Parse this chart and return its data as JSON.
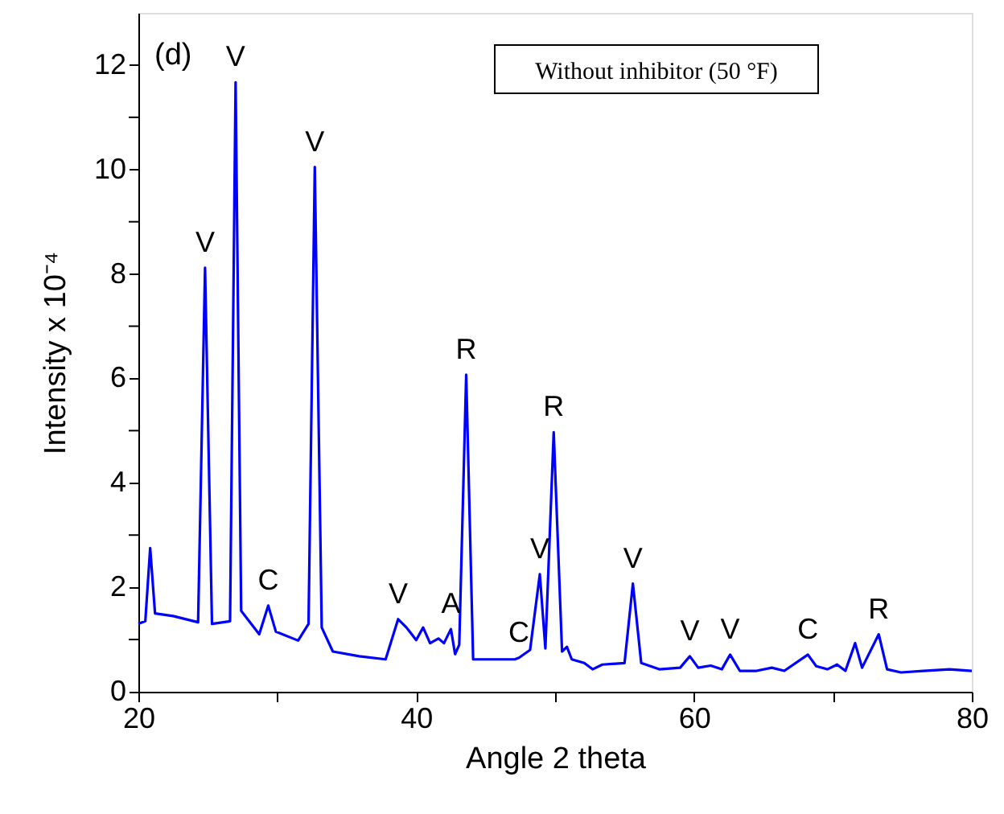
{
  "chart_data": {
    "type": "line",
    "xlabel": "Angle 2 theta",
    "ylabel": "Intensity x 10⁻⁴",
    "xlim": [
      20,
      80
    ],
    "ylim": [
      0,
      13
    ],
    "xticks": [
      20,
      {
        "value": 30,
        "label": null
      },
      40,
      {
        "value": 50,
        "label": null
      },
      60,
      {
        "value": 70,
        "label": null
      },
      80
    ],
    "yticks": [
      0,
      {
        "value": 1,
        "label": null
      },
      2,
      {
        "value": 3,
        "label": null
      },
      4,
      {
        "value": 5,
        "label": null
      },
      6,
      {
        "value": 7,
        "label": null
      },
      8,
      {
        "value": 9,
        "label": null
      },
      10,
      {
        "value": 11,
        "label": null
      },
      12
    ],
    "grid": false,
    "marker": "none",
    "line_style": "solid",
    "series": [
      {
        "color": "#0000ff",
        "x": [
          20,
          20.5,
          20.85,
          21.2,
          22.5,
          24.3,
          24.8,
          25.3,
          26.6,
          27.0,
          27.4,
          28.7,
          29.35,
          29.9,
          31.5,
          32.25,
          32.7,
          33.2,
          34.0,
          35.9,
          37.8,
          38.7,
          39.3,
          40.0,
          40.5,
          41.0,
          41.6,
          42.0,
          42.5,
          42.8,
          43.1,
          43.6,
          44.1,
          45.5,
          47.1,
          47.4,
          48.2,
          48.9,
          49.3,
          49.9,
          50.5,
          50.85,
          51.2,
          52.1,
          52.7,
          53.4,
          55.0,
          55.6,
          56.2,
          57.5,
          59.0,
          59.7,
          60.3,
          61.2,
          62.0,
          62.6,
          63.3,
          64.5,
          65.6,
          66.5,
          68.2,
          68.8,
          69.6,
          70.3,
          70.9,
          71.6,
          72.1,
          73.3,
          73.9,
          74.9,
          76.5,
          78.4,
          80
        ],
        "values": [
          1.3,
          1.35,
          2.75,
          1.5,
          1.45,
          1.33,
          8.12,
          1.3,
          1.35,
          11.67,
          1.55,
          1.1,
          1.65,
          1.15,
          0.98,
          1.3,
          10.05,
          1.23,
          0.77,
          0.68,
          0.62,
          1.39,
          1.23,
          0.99,
          1.23,
          0.93,
          1.02,
          0.93,
          1.2,
          0.72,
          0.9,
          6.07,
          0.62,
          0.62,
          0.62,
          0.65,
          0.8,
          2.25,
          0.83,
          4.97,
          0.77,
          0.86,
          0.62,
          0.55,
          0.43,
          0.52,
          0.55,
          2.07,
          0.55,
          0.43,
          0.46,
          0.68,
          0.46,
          0.5,
          0.43,
          0.71,
          0.4,
          0.4,
          0.46,
          0.4,
          0.71,
          0.49,
          0.43,
          0.52,
          0.4,
          0.93,
          0.46,
          1.1,
          0.43,
          0.37,
          0.4,
          0.43,
          0.4
        ]
      }
    ],
    "annotations": [
      "(d)",
      "Without inhibitor (50 °F)",
      {
        "text": "V",
        "x": 24.8,
        "y": 8.12
      },
      {
        "text": "V",
        "x": 27.0,
        "y": 11.67
      },
      {
        "text": "C",
        "x": 29.35,
        "y": 1.65
      },
      {
        "text": "V",
        "x": 32.7,
        "y": 10.05
      },
      {
        "text": "V",
        "x": 38.7,
        "y": 1.39
      },
      {
        "text": "A",
        "x": 42.5,
        "y": 1.2
      },
      {
        "text": "R",
        "x": 43.6,
        "y": 6.07
      },
      {
        "text": "C",
        "x": 47.4,
        "y": 0.65
      },
      {
        "text": "V",
        "x": 48.9,
        "y": 2.25
      },
      {
        "text": "R",
        "x": 49.9,
        "y": 4.97
      },
      {
        "text": "V",
        "x": 55.6,
        "y": 2.07
      },
      {
        "text": "V",
        "x": 59.7,
        "y": 0.68
      },
      {
        "text": "V",
        "x": 62.6,
        "y": 0.71
      },
      {
        "text": "C",
        "x": 68.2,
        "y": 0.71
      },
      {
        "text": "R",
        "x": 73.3,
        "y": 1.1
      }
    ]
  }
}
